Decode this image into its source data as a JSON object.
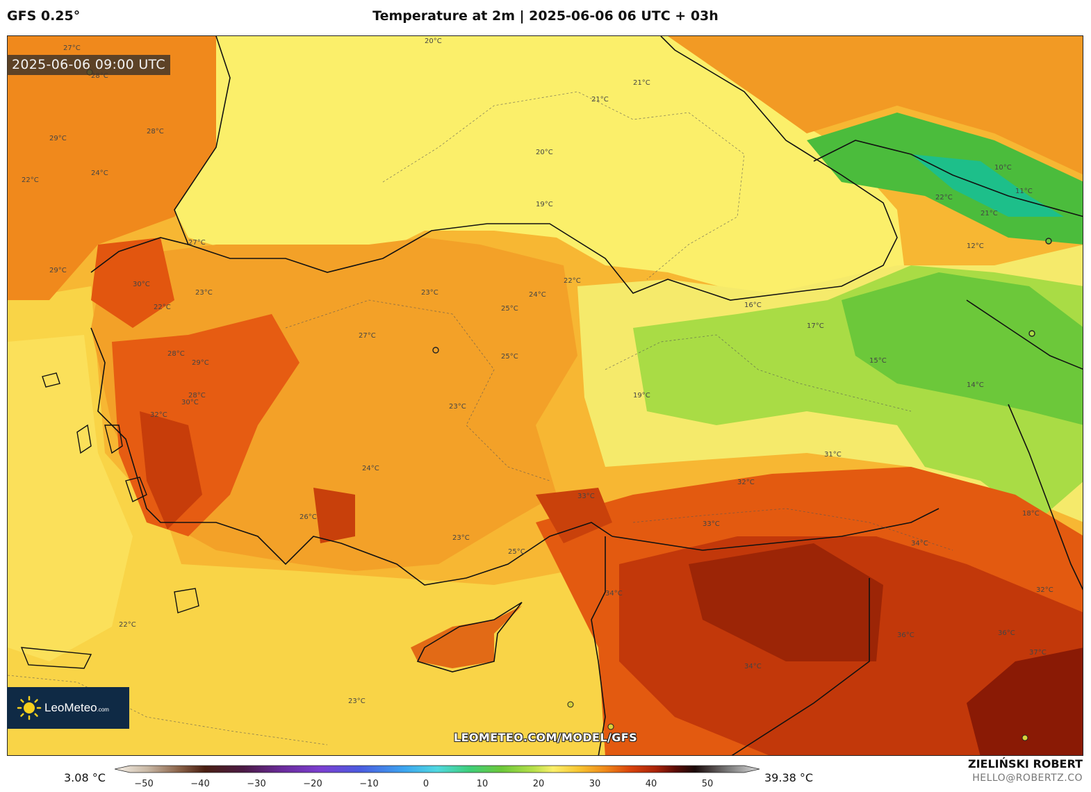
{
  "header": {
    "model": "GFS 0.25°",
    "title": "Temperature at 2m | 2025-06-06 06 UTC + 03h"
  },
  "map": {
    "valid_time": "2025-06-06 09:00 UTC",
    "region": "Turkey and Eastern Mediterranean",
    "contour_labels": [
      "27°C",
      "28°C",
      "29°C",
      "28°C",
      "24°C",
      "22°C",
      "29°C",
      "30°C",
      "28°C",
      "27°C",
      "23°C",
      "22°C",
      "20°C",
      "21°C",
      "21°C",
      "20°C",
      "19°C",
      "22°C",
      "23°C",
      "25°C",
      "24°C",
      "27°C",
      "29°C",
      "30°C",
      "32°C",
      "28°C",
      "25°C",
      "23°C",
      "24°C",
      "26°C",
      "23°C",
      "25°C",
      "33°C",
      "34°C",
      "32°C",
      "31°C",
      "33°C",
      "34°C",
      "36°C",
      "34°C",
      "37°C",
      "36°C",
      "32°C",
      "17°C",
      "16°C",
      "15°C",
      "14°C",
      "12°C",
      "10°C",
      "11°C",
      "21°C",
      "19°C",
      "18°C",
      "22°C",
      "23°C",
      "22°C"
    ],
    "cities": [
      "city-1",
      "city-2",
      "city-3",
      "city-4",
      "city-5",
      "city-6",
      "city-7"
    ]
  },
  "legend": {
    "min_label": "3.08 °C",
    "max_label": "39.38 °C",
    "ticks": [
      "−50",
      "−40",
      "−30",
      "−20",
      "−10",
      "0",
      "10",
      "20",
      "30",
      "40",
      "50"
    ],
    "colors": {
      "very_hot": "#8a1a05",
      "hot": "#d9420b",
      "warm": "#f08a1a",
      "mild": "#f7c531",
      "cool": "#fbef6a",
      "cold": "#8bd637",
      "cold2": "#2fb85a"
    }
  },
  "branding": {
    "logo": "LeoMeteo",
    "logo_suffix": ".com",
    "url": "LEOMETEO.COM/MODEL/GFS",
    "author": "ZIELIŃSKI ROBERT",
    "email": "HELLO@ROBERTZ.CO"
  }
}
